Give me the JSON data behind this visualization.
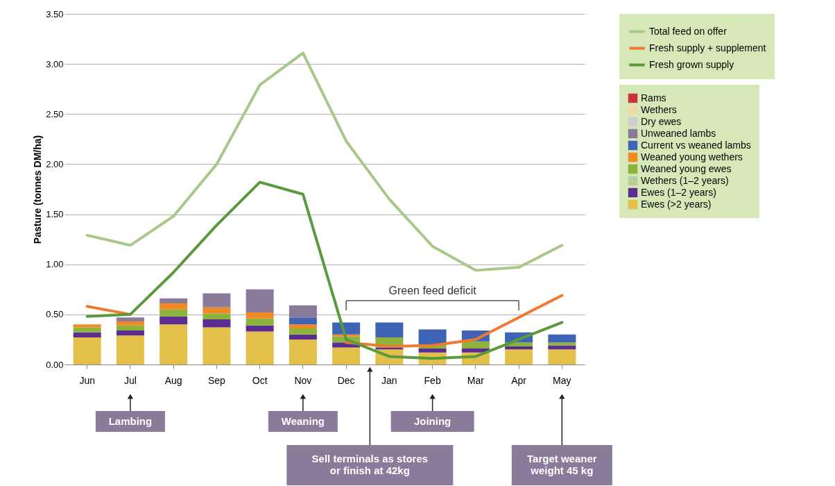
{
  "chart_data": {
    "type": "bar",
    "stacked": true,
    "ylabel": "Pasture (tonnes DM/ha)",
    "categories": [
      "Jun",
      "Jul",
      "Aug",
      "Sep",
      "Oct",
      "Nov",
      "Dec",
      "Jan",
      "Feb",
      "Mar",
      "Apr",
      "May"
    ],
    "ylim": [
      0,
      3.5
    ],
    "yticks": [
      {
        "value": 0,
        "label": "0.00"
      },
      {
        "value": 0.5,
        "label": "0.50"
      },
      {
        "value": 1,
        "label": "1.00"
      },
      {
        "value": 1.5,
        "label": "1.50"
      },
      {
        "value": 2,
        "label": "2.00"
      },
      {
        "value": 2.5,
        "label": "2.50"
      },
      {
        "value": 3,
        "label": "3.00"
      },
      {
        "value": 3.5,
        "label": "3.50"
      }
    ],
    "grid": "y",
    "legend": "right",
    "series": [
      {
        "name": "Ewes (>2 years)",
        "color": "#e3c04a",
        "values": [
          0.27,
          0.29,
          0.4,
          0.37,
          0.33,
          0.25,
          0.17,
          0.15,
          0.12,
          0.12,
          0.15,
          0.15
        ]
      },
      {
        "name": "Ewes (1–2 years)",
        "color": "#5c2d91",
        "values": [
          0.05,
          0.05,
          0.08,
          0.08,
          0.06,
          0.05,
          0.05,
          0.02,
          0.04,
          0.04,
          0.03,
          0.04
        ]
      },
      {
        "name": "Wethers (1–2 years)",
        "color": "#b7cf98",
        "values": [
          null,
          null,
          null,
          null,
          null,
          null,
          null,
          null,
          null,
          null,
          null,
          null
        ]
      },
      {
        "name": "Weaned young ewes",
        "color": "#8db33c",
        "values": [
          0.05,
          0.05,
          0.07,
          0.06,
          0.07,
          0.06,
          0.06,
          0.1,
          0.04,
          0.07,
          0.04,
          0.03
        ]
      },
      {
        "name": "Weaned young wethers",
        "color": "#f08a24",
        "values": [
          0.03,
          0.04,
          0.06,
          0.06,
          0.06,
          0.04,
          0.02,
          null,
          null,
          null,
          null,
          null
        ]
      },
      {
        "name": "Current vs weaned lambs",
        "color": "#3f63b5",
        "values": [
          null,
          null,
          null,
          null,
          null,
          0.07,
          0.12,
          0.15,
          0.15,
          0.11,
          0.1,
          0.08
        ]
      },
      {
        "name": "Unweaned lambs",
        "color": "#8a7b9b",
        "values": [
          null,
          0.04,
          0.05,
          0.14,
          0.23,
          0.12,
          null,
          null,
          null,
          null,
          null,
          null
        ]
      },
      {
        "name": "Dry ewes",
        "color": "#cfcfd2",
        "values": [
          null,
          null,
          null,
          null,
          null,
          null,
          null,
          null,
          null,
          null,
          null,
          null
        ]
      },
      {
        "name": "Wethers",
        "color": "#f0d9a8",
        "values": [
          null,
          null,
          null,
          null,
          null,
          null,
          null,
          null,
          null,
          null,
          null,
          null
        ]
      },
      {
        "name": "Rams",
        "color": "#c8343c",
        "values": [
          null,
          null,
          null,
          null,
          null,
          null,
          null,
          null,
          null,
          null,
          null,
          null
        ]
      },
      {
        "name": "Total feed on offer",
        "type": "line",
        "color": "#a8c88a",
        "values": [
          1.29,
          1.19,
          1.48,
          2.0,
          2.79,
          3.11,
          2.23,
          1.65,
          1.18,
          0.94,
          0.97,
          1.19
        ]
      },
      {
        "name": "Fresh supply + supplement",
        "type": "line",
        "color": "#ee7a30",
        "values": [
          0.58,
          0.5,
          null,
          null,
          null,
          null,
          0.22,
          0.18,
          0.19,
          0.25,
          0.47,
          0.69
        ]
      },
      {
        "name": "Fresh grown supply",
        "type": "line",
        "color": "#5a9a3c",
        "values": [
          0.48,
          0.5,
          0.92,
          1.39,
          1.82,
          1.7,
          0.25,
          0.08,
          0.06,
          0.08,
          0.25,
          0.42
        ]
      }
    ],
    "annotations": [
      "Green feed deficit",
      "Lambing",
      "Weaning",
      "Joining",
      "Sell terminals as stores\nor finish at 42kg",
      "Target weaner\nweight 45 kg"
    ]
  }
}
